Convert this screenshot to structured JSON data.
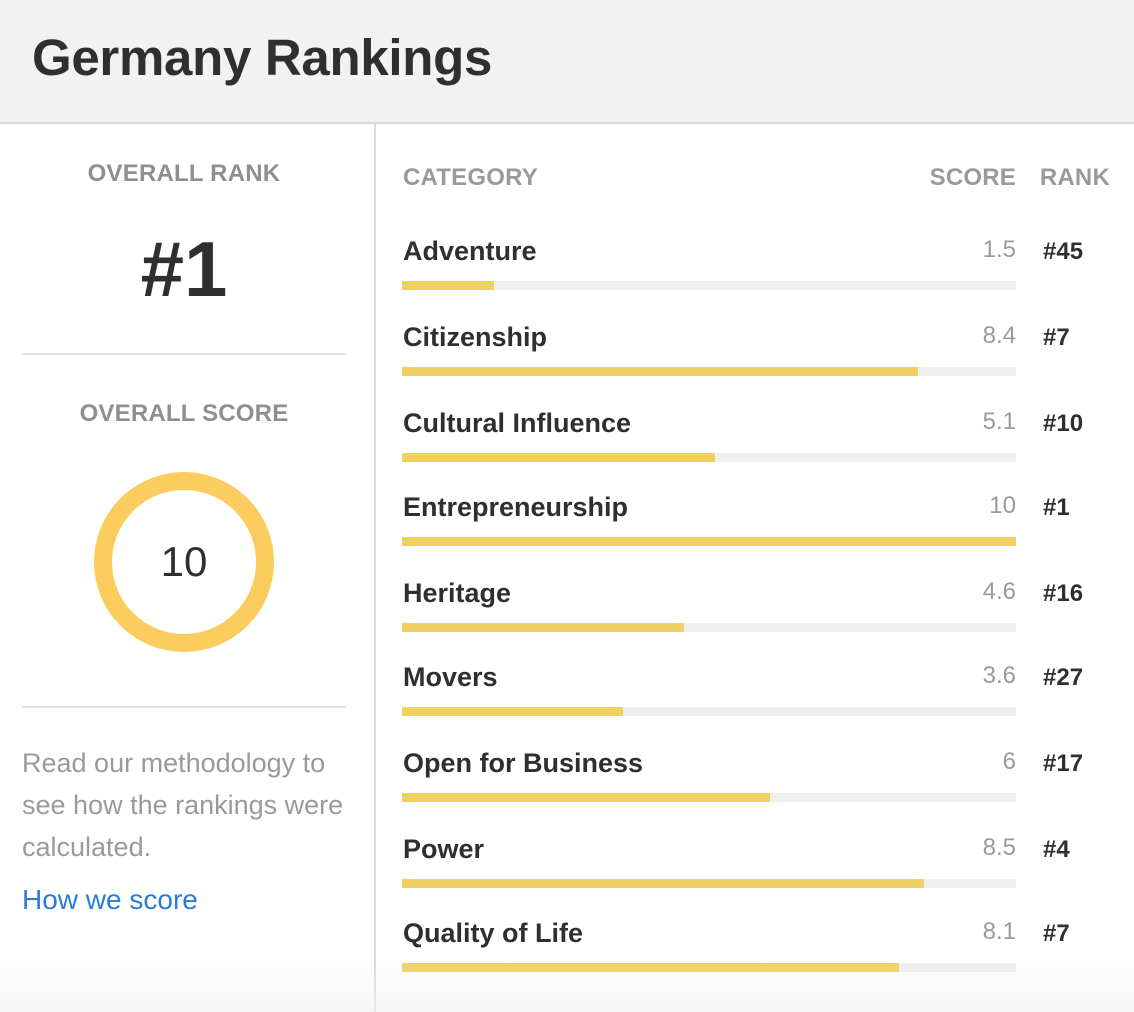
{
  "header": {
    "title": "Germany Rankings"
  },
  "sidebar": {
    "overall_rank_label": "OVERALL RANK",
    "overall_rank_value": "#1",
    "overall_score_label": "OVERALL SCORE",
    "overall_score_value": "10",
    "overall_score_fraction": 1.0,
    "methodology_text": "Read our methodology to see how the rankings were calculated.",
    "how_we_score_link": "How we score"
  },
  "table": {
    "headers": {
      "category": "CATEGORY",
      "score": "SCORE",
      "rank": "RANK"
    },
    "rows": [
      {
        "name": "Adventure",
        "score": "1.5",
        "rank": "#45",
        "fill": 0.15
      },
      {
        "name": "Citizenship",
        "score": "8.4",
        "rank": "#7",
        "fill": 0.84
      },
      {
        "name": "Cultural Influence",
        "score": "5.1",
        "rank": "#10",
        "fill": 0.51
      },
      {
        "name": "Entrepreneurship",
        "score": "10",
        "rank": "#1",
        "fill": 1.0
      },
      {
        "name": "Heritage",
        "score": "4.6",
        "rank": "#16",
        "fill": 0.46
      },
      {
        "name": "Movers",
        "score": "3.6",
        "rank": "#27",
        "fill": 0.36
      },
      {
        "name": "Open for Business",
        "score": "6",
        "rank": "#17",
        "fill": 0.6
      },
      {
        "name": "Power",
        "score": "8.5",
        "rank": "#4",
        "fill": 0.85
      },
      {
        "name": "Quality of Life",
        "score": "8.1",
        "rank": "#7",
        "fill": 0.81
      }
    ]
  },
  "colors": {
    "accent": "#f0cf63",
    "ring": "#fbcd5e",
    "link": "#2b7bd8",
    "track": "#efefef"
  }
}
